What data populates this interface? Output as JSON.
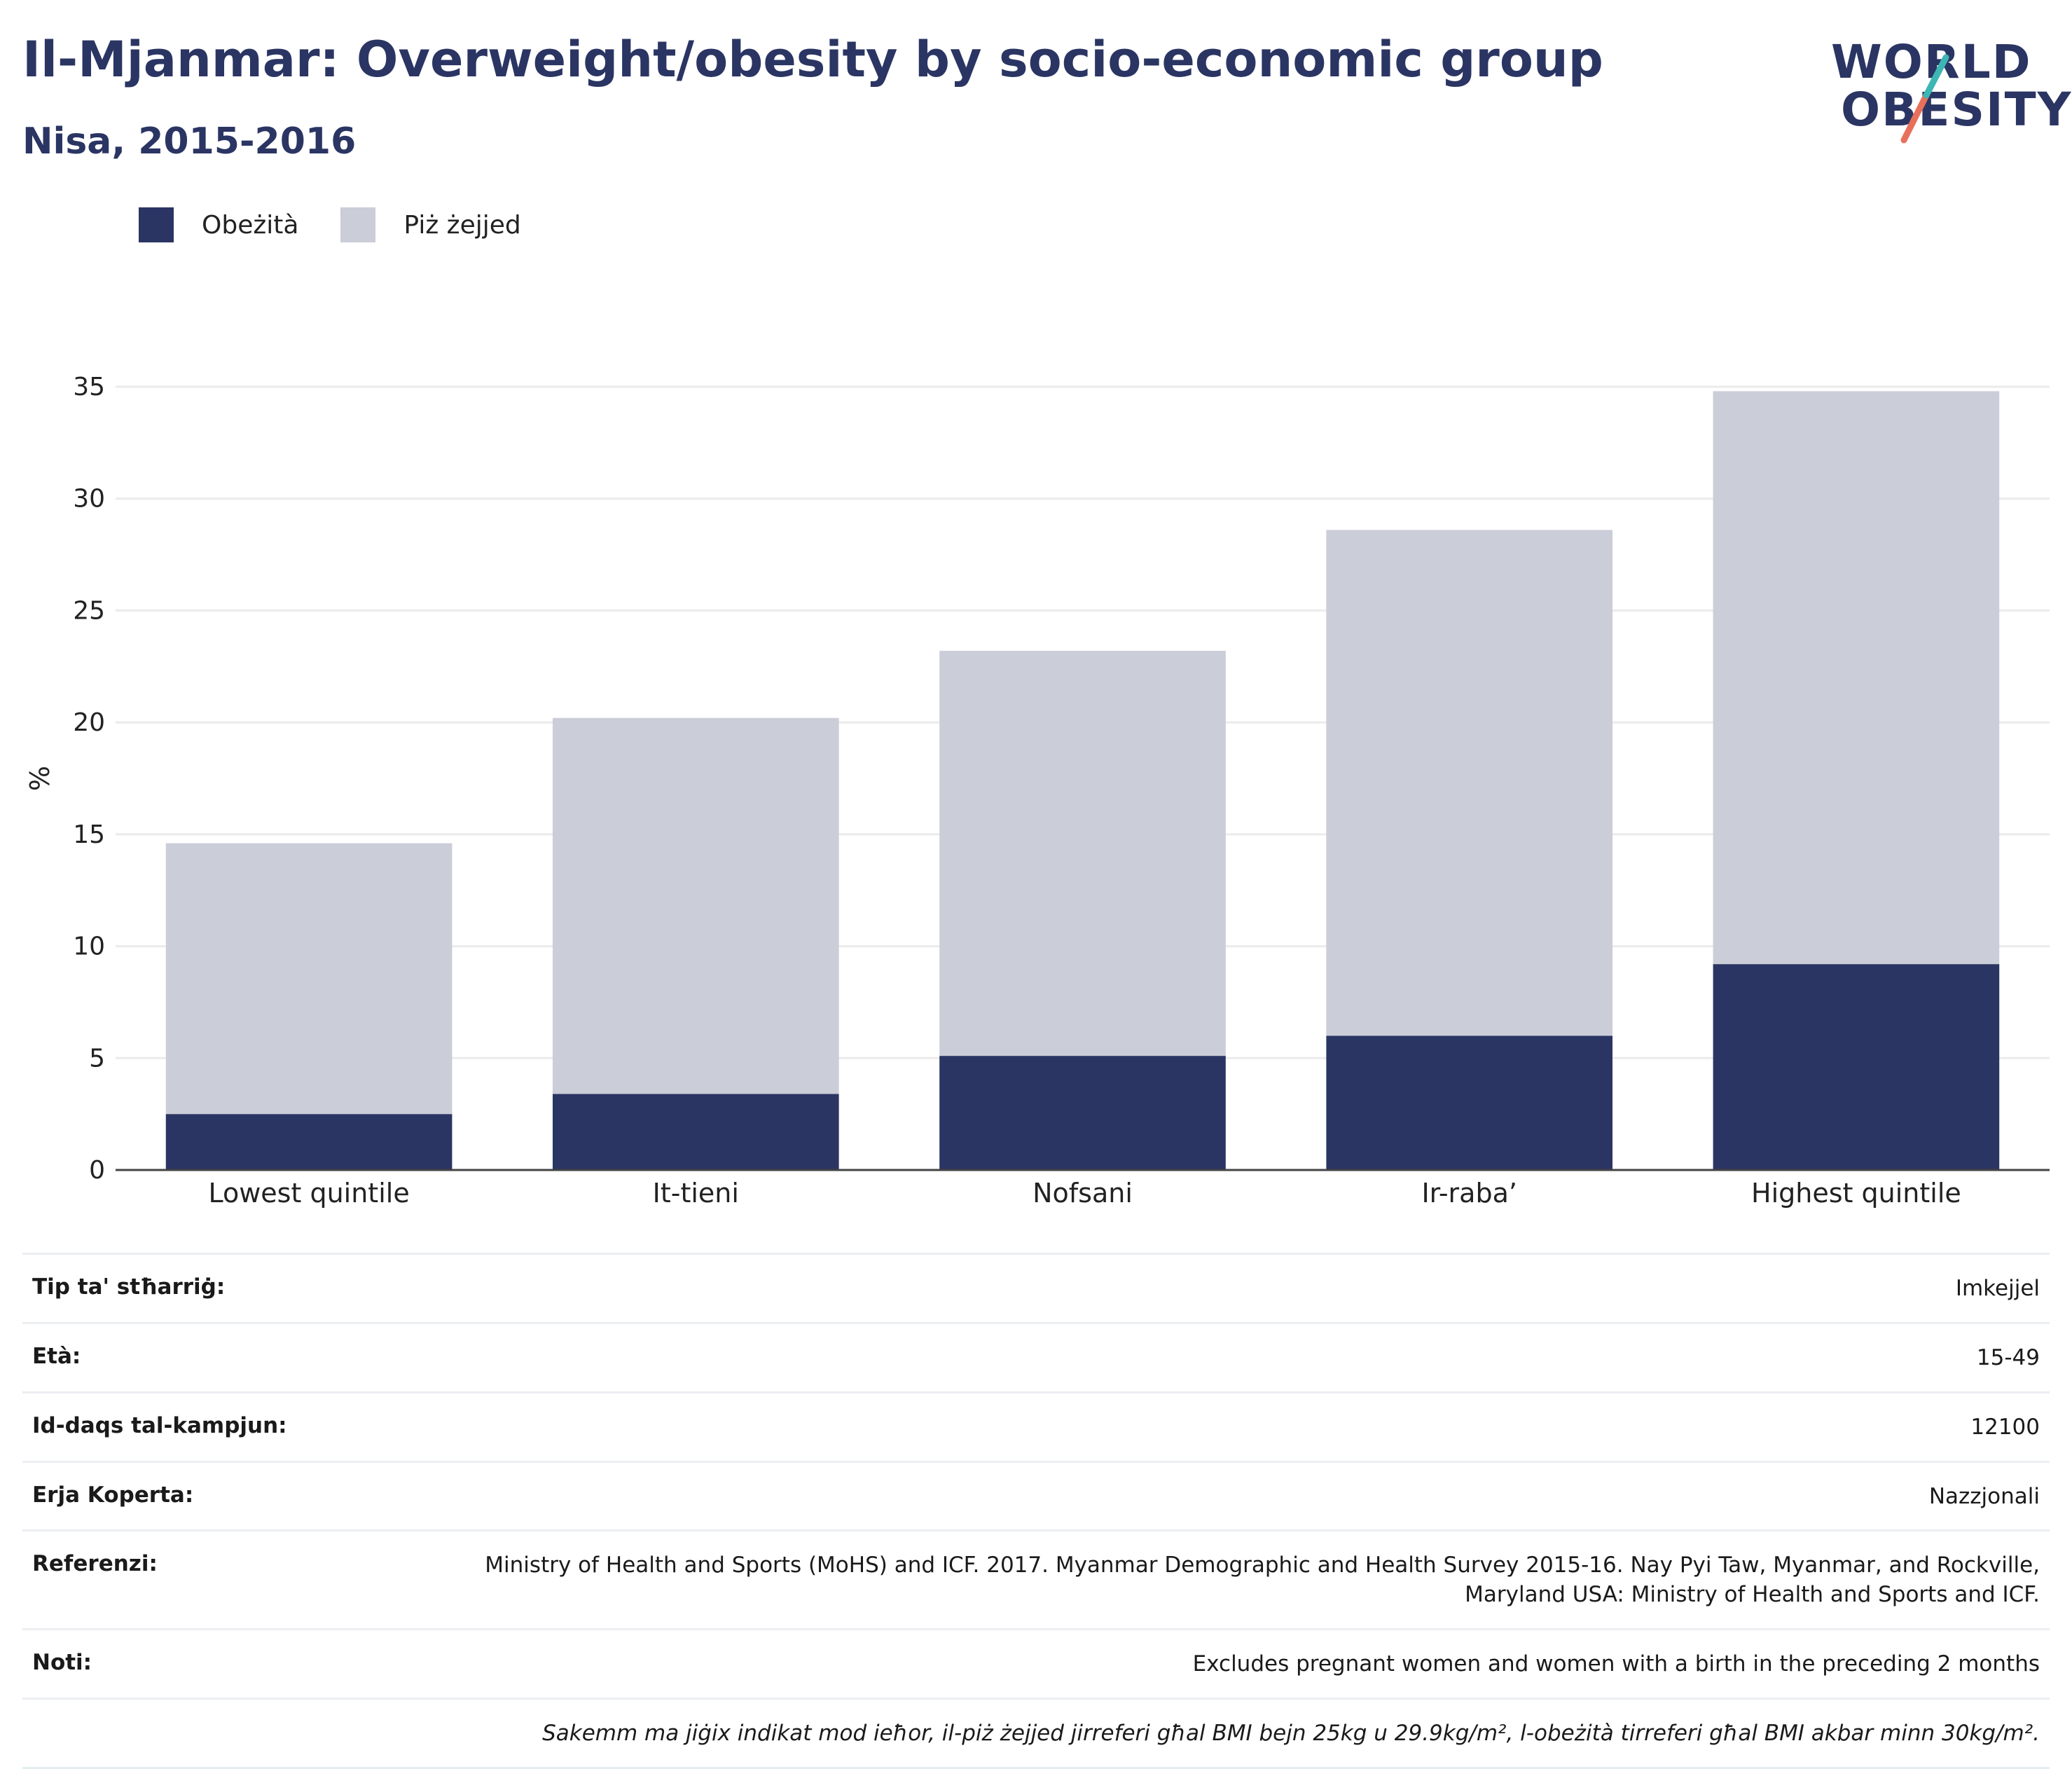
{
  "header": {
    "title": "Il-Mjanmar: Overweight/obesity by socio-economic group",
    "subtitle": "Nisa, 2015-2016"
  },
  "logo": {
    "line1": "WORLD",
    "line2": "OBESITY"
  },
  "legend": {
    "items": [
      {
        "label": "Obeżità",
        "color": "#2b3563"
      },
      {
        "label": "Piż żejjed",
        "color": "#cbcdd8"
      }
    ]
  },
  "chart_data": {
    "type": "bar",
    "stacked": true,
    "categories": [
      "Lowest quintile",
      "It-tieni",
      "Nofsani",
      "Ir-raba’",
      "Highest quintile"
    ],
    "series": [
      {
        "name": "Obeżità",
        "color": "#2b3563",
        "values": [
          2.5,
          3.4,
          5.1,
          6.0,
          9.2
        ]
      },
      {
        "name": "Piż żejjed",
        "color": "#cbcdd8",
        "values": [
          12.1,
          16.8,
          18.1,
          22.6,
          25.6
        ]
      }
    ],
    "ylabel": "%",
    "xlabel": "",
    "ylim": [
      0,
      35
    ],
    "yticks": [
      0,
      5,
      10,
      15,
      20,
      25,
      30,
      35
    ],
    "grid": true,
    "legend_position": "top-left"
  },
  "info": {
    "rows": [
      {
        "key": "Tip ta' stħarriġ:",
        "value": "Imkejjel"
      },
      {
        "key": "Età:",
        "value": "15-49"
      },
      {
        "key": "Id-daqs tal-kampjun:",
        "value": "12100"
      },
      {
        "key": "Erja Koperta:",
        "value": "Nazzjonali"
      },
      {
        "key": "Referenzi:",
        "value": "Ministry of Health and Sports (MoHS) and ICF. 2017. Myanmar Demographic and Health Survey 2015-16. Nay Pyi Taw, Myanmar, and Rockville, Maryland USA: Ministry of Health and Sports and ICF."
      },
      {
        "key": "Noti:",
        "value": "Excludes pregnant women and women with a birth in the preceding 2 months"
      }
    ],
    "footnote": "Sakemm ma jiġix indikat mod ieħor, il-piż żejjed jirreferi għal BMI bejn 25kg u 29.9kg/m², l-obeżità tirreferi għal BMI akbar minn 30kg/m²."
  }
}
